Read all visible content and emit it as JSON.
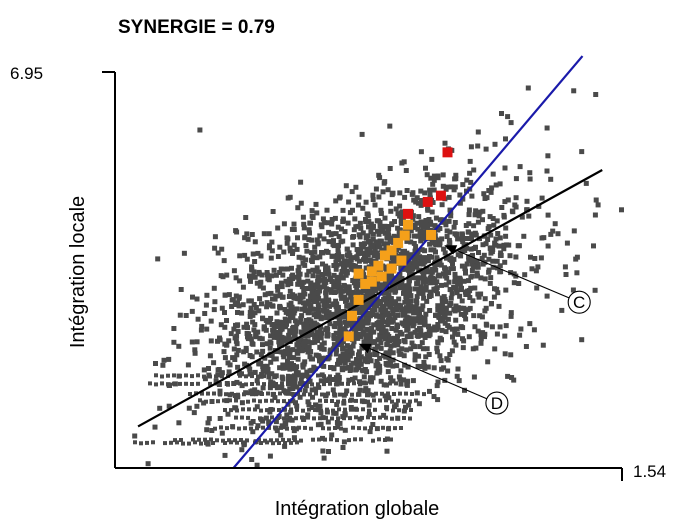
{
  "chart_data": {
    "type": "scatter",
    "title": "SYNERGIE = 0.79",
    "xlabel": "Intégration globale",
    "ylabel": "Intégration locale",
    "y_max_label": "6.95",
    "x_max_label": "1.54",
    "xlim": [
      0,
      1.54
    ],
    "ylim": [
      0,
      6.95
    ],
    "grid": false,
    "legend": "none",
    "colors": {
      "points": "#4a4a4a",
      "highlight_orange": "#f5a01a",
      "highlight_red": "#dd1111",
      "regression_line": "#000000",
      "identity_line": "#1a1aaa",
      "axis": "#000000"
    },
    "highlight_orange_points": [
      {
        "x": 0.71,
        "y": 2.31
      },
      {
        "x": 0.72,
        "y": 2.67
      },
      {
        "x": 0.74,
        "y": 2.95
      },
      {
        "x": 0.76,
        "y": 3.23
      },
      {
        "x": 0.78,
        "y": 3.45
      },
      {
        "x": 0.8,
        "y": 3.55
      },
      {
        "x": 0.82,
        "y": 3.73
      },
      {
        "x": 0.84,
        "y": 3.82
      },
      {
        "x": 0.86,
        "y": 3.95
      },
      {
        "x": 0.88,
        "y": 4.08
      },
      {
        "x": 0.78,
        "y": 3.27
      },
      {
        "x": 0.81,
        "y": 3.36
      },
      {
        "x": 0.84,
        "y": 3.5
      },
      {
        "x": 0.87,
        "y": 3.64
      },
      {
        "x": 0.74,
        "y": 3.41
      },
      {
        "x": 0.89,
        "y": 4.27
      },
      {
        "x": 0.96,
        "y": 4.09
      }
    ],
    "highlight_red_points": [
      {
        "x": 0.89,
        "y": 4.46
      },
      {
        "x": 0.95,
        "y": 4.67
      },
      {
        "x": 0.99,
        "y": 4.78
      },
      {
        "x": 1.01,
        "y": 5.54
      }
    ],
    "regression_line": {
      "from": {
        "x": 0.07,
        "y": 0.73
      },
      "to": {
        "x": 1.48,
        "y": 5.23
      }
    },
    "identity_line": {
      "from": {
        "x": 0.36,
        "y": 0.0
      },
      "to": {
        "x": 1.42,
        "y": 7.23
      }
    },
    "annotations": [
      {
        "text": "C",
        "target": {
          "x": 1.0,
          "y": 3.91
        },
        "label_at": {
          "x": 1.41,
          "y": 2.91
        }
      },
      {
        "text": "D",
        "target": {
          "x": 0.74,
          "y": 2.18
        },
        "label_at": {
          "x": 1.16,
          "y": 1.14
        }
      }
    ]
  }
}
